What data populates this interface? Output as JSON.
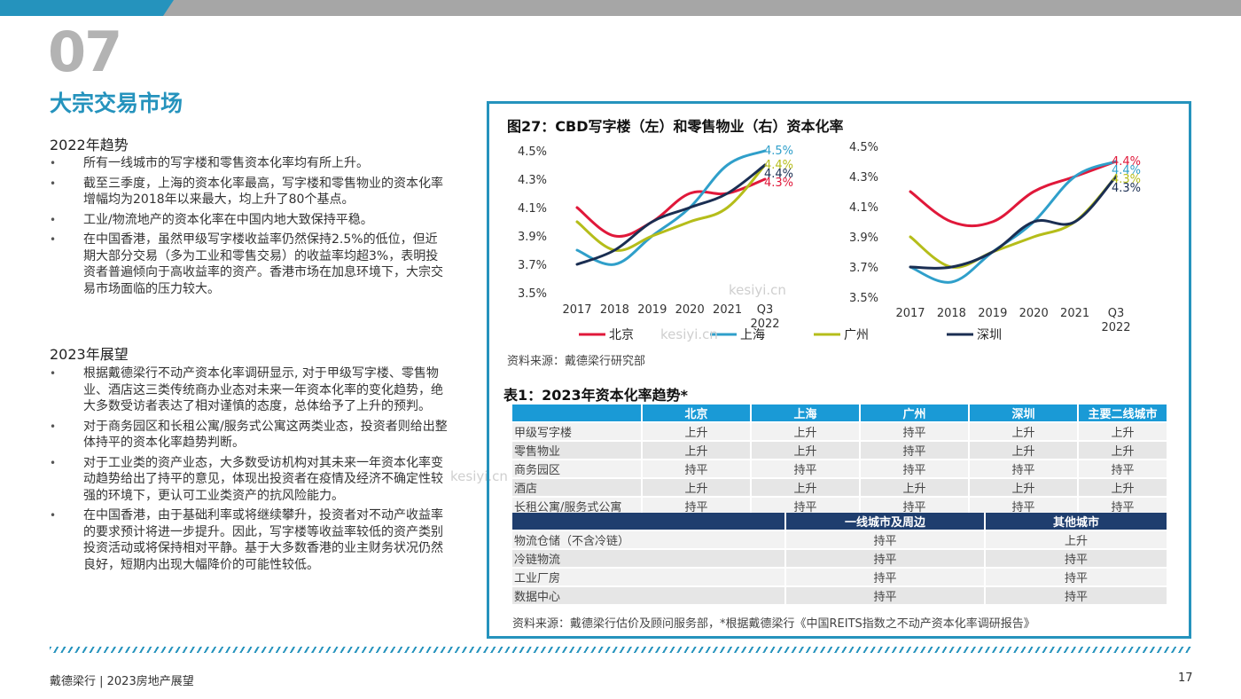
{
  "header": {
    "section_number": "07",
    "section_title": "大宗交易市场"
  },
  "left": {
    "trend_heading": "2022年趋势",
    "trend_bullets": [
      "所有一线城市的写字楼和零售资本化率均有所上升。",
      "截至三季度，上海的资本化率最高，写字楼和零售物业的资本化率增幅均为2018年以来最大，均上升了80个基点。",
      "工业/物流地产的资本化率在中国内地大致保持平稳。",
      "在中国香港，虽然甲级写字楼收益率仍然保持2.5%的低位，但近期大部分交易（多为工业和零售交易）的收益率均超3%，表明投资者普遍倾向于高收益率的资产。香港市场在加息环境下，大宗交易市场面临的压力较大。"
    ],
    "outlook_heading": "2023年展望",
    "outlook_bullets": [
      "根据戴德梁行不动产资本化率调研显示, 对于甲级写字楼、零售物业、酒店这三类传统商办业态对未来一年资本化率的变化趋势，绝大多数受访者表达了相对谨慎的态度，总体给予了上升的预判。",
      "对于商务园区和长租公寓/服务式公寓这两类业态，投资者则给出整体持平的资本化率趋势判断。",
      "对于工业类的资产业态，大多数受访机构对其未来一年资本化率变动趋势给出了持平的意见，体现出投资者在疫情及经济不确定性较强的环境下，更认可工业类资产的抗风险能力。",
      "在中国香港，由于基础利率或将继续攀升，投资者对不动产收益率的要求预计将进一步提升。因此，写字楼等收益率较低的资产类别投资活动或将保持相对平静。基于大多数香港的业主财务状况仍然良好，短期内出现大幅降价的可能性较低。"
    ]
  },
  "figure": {
    "title": "图27：CBD写字楼（左）和零售物业（右）资本化率",
    "source": "资料来源：戴德梁行研究部",
    "legend": [
      {
        "name": "北京",
        "color": "#e0183a"
      },
      {
        "name": "上海",
        "color": "#2f9fca"
      },
      {
        "name": "广州",
        "color": "#b5bd1a"
      },
      {
        "name": "深圳",
        "color": "#1a2e52"
      }
    ]
  },
  "chart_data": [
    {
      "type": "line",
      "title": "CBD写字楼",
      "x": [
        "2017",
        "2018",
        "2019",
        "2020",
        "2021",
        "Q3 2022"
      ],
      "ylim": [
        3.5,
        4.5
      ],
      "yticks": [
        "3.5%",
        "3.7%",
        "3.9%",
        "4.1%",
        "4.3%",
        "4.5%"
      ],
      "series": [
        {
          "name": "北京",
          "values": [
            4.1,
            3.9,
            4.0,
            4.2,
            4.2,
            4.3
          ],
          "end_label": "4.3%"
        },
        {
          "name": "上海",
          "values": [
            3.8,
            3.7,
            3.9,
            4.1,
            4.4,
            4.5
          ],
          "end_label": "4.5%"
        },
        {
          "name": "广州",
          "values": [
            4.0,
            3.8,
            3.9,
            4.0,
            4.1,
            4.4
          ],
          "end_label": "4.4%"
        },
        {
          "name": "深圳",
          "values": [
            3.7,
            3.8,
            4.0,
            4.1,
            4.2,
            4.4
          ],
          "end_label": "4.4%"
        }
      ]
    },
    {
      "type": "line",
      "title": "零售物业",
      "x": [
        "2017",
        "2018",
        "2019",
        "2020",
        "2021",
        "Q3 2022"
      ],
      "ylim": [
        3.5,
        4.5
      ],
      "yticks": [
        "3.5%",
        "3.7%",
        "3.9%",
        "4.1%",
        "4.3%",
        "4.5%"
      ],
      "series": [
        {
          "name": "北京",
          "values": [
            4.2,
            4.0,
            4.0,
            4.2,
            4.3,
            4.4
          ],
          "end_label": "4.4%"
        },
        {
          "name": "上海",
          "values": [
            3.7,
            3.6,
            3.8,
            4.0,
            4.3,
            4.4
          ],
          "end_label": "4.4%"
        },
        {
          "name": "广州",
          "values": [
            3.9,
            3.7,
            3.8,
            3.9,
            4.0,
            4.3
          ],
          "end_label": "4.3%"
        },
        {
          "name": "深圳",
          "values": [
            3.7,
            3.7,
            3.8,
            4.0,
            4.0,
            4.3
          ],
          "end_label": "4.3%"
        }
      ]
    }
  ],
  "table1": {
    "title": "表1：2023年资本化率趋势*",
    "headers": [
      "",
      "北京",
      "上海",
      "广州",
      "深圳",
      "主要二线城市"
    ],
    "rows": [
      [
        "甲级写字楼",
        "上升",
        "上升",
        "持平",
        "上升",
        "上升"
      ],
      [
        "零售物业",
        "上升",
        "上升",
        "持平",
        "上升",
        "上升"
      ],
      [
        "商务园区",
        "持平",
        "持平",
        "持平",
        "持平",
        "持平"
      ],
      [
        "酒店",
        "上升",
        "上升",
        "上升",
        "上升",
        "上升"
      ],
      [
        "长租公寓/服务式公寓",
        "持平",
        "持平",
        "持平",
        "持平",
        "持平"
      ]
    ]
  },
  "table2": {
    "headers": [
      "",
      "一线城市及周边",
      "其他城市"
    ],
    "rows": [
      [
        "物流仓储（不含冷链）",
        "持平",
        "上升"
      ],
      [
        "冷链物流",
        "持平",
        "持平"
      ],
      [
        "工业厂房",
        "持平",
        "持平"
      ],
      [
        "数据中心",
        "持平",
        "持平"
      ]
    ],
    "source": "资料来源：戴德梁行估价及顾问服务部，*根据戴德梁行《中国REITS指数之不动产资本化率调研报告》"
  },
  "watermarks": [
    "kesiyi.cn",
    "kesiyi.cn",
    "kesiyi.cn"
  ],
  "footer": {
    "left": "戴德梁行 | 2023房地产展望",
    "page": "17"
  }
}
